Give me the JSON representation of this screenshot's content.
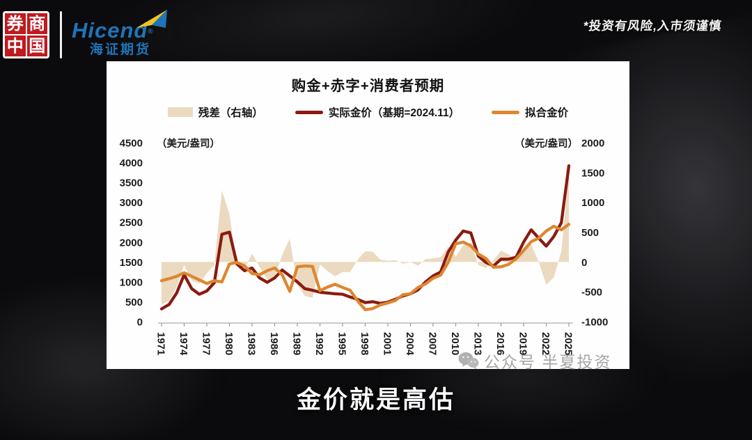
{
  "header": {
    "seal": {
      "chars": [
        "券",
        "商",
        "中",
        "国"
      ],
      "bg_color": "#bf1a1f"
    },
    "hicend": {
      "name": "Hicend",
      "reg": "®",
      "subtitle": "海证期货",
      "brand_color": "#1f74b8",
      "arrow_yellow": "#f2c41d",
      "arrow_blue": "#1f74b8"
    },
    "disclaimer": "*投资有风险,入市须谨慎"
  },
  "chart": {
    "title": "购金+赤字+消费者预期",
    "legend": [
      {
        "label": "残差（右轴）",
        "swatch": "area",
        "color": "#EBDAC0"
      },
      {
        "label": "实际金价（基期=2024.11）",
        "swatch": "line",
        "color": "#8B1A10"
      },
      {
        "label": "拟合金价",
        "swatch": "line",
        "color": "#DD8630"
      }
    ],
    "left_axis": {
      "unit": "（美元/盎司）",
      "ticks": [
        4500,
        4000,
        3500,
        3000,
        2500,
        2000,
        1500,
        1000,
        500,
        0
      ]
    },
    "right_axis": {
      "unit": "（美元/盎司）",
      "ticks": [
        2000,
        1500,
        1000,
        500,
        0,
        -500,
        -1000
      ]
    },
    "x_axis": {
      "ticks": [
        1971,
        1974,
        1977,
        1980,
        1983,
        1986,
        1989,
        1992,
        1995,
        1998,
        2001,
        2004,
        2007,
        2010,
        2013,
        2016,
        2019,
        2022,
        2025
      ]
    }
  },
  "chart_data": {
    "type": "line",
    "title": "购金+赤字+消费者预期",
    "x": [
      1971,
      1972,
      1973,
      1974,
      1975,
      1976,
      1977,
      1978,
      1979,
      1980,
      1981,
      1982,
      1983,
      1984,
      1985,
      1986,
      1987,
      1988,
      1989,
      1990,
      1991,
      1992,
      1993,
      1994,
      1995,
      1996,
      1997,
      1998,
      1999,
      2000,
      2001,
      2002,
      2003,
      2004,
      2005,
      2006,
      2007,
      2008,
      2009,
      2010,
      2011,
      2012,
      2013,
      2014,
      2015,
      2016,
      2017,
      2018,
      2019,
      2020,
      2021,
      2022,
      2023,
      2024,
      2025
    ],
    "left_ylim": [
      0,
      4500
    ],
    "right_ylim": [
      -1000,
      2000
    ],
    "grid": false,
    "legend_position": "top",
    "series": [
      {
        "name": "残差（右轴）",
        "type": "area",
        "axis": "right",
        "color": "#EBDAC0",
        "values": [
          -710,
          -650,
          -420,
          -50,
          -310,
          -360,
          -190,
          -50,
          1200,
          800,
          -40,
          -120,
          140,
          -80,
          -290,
          -250,
          120,
          390,
          -380,
          -570,
          -600,
          -40,
          -150,
          -240,
          -170,
          -170,
          40,
          180,
          170,
          40,
          20,
          30,
          -30,
          0,
          -60,
          50,
          60,
          80,
          260,
          90,
          280,
          320,
          -50,
          -100,
          30,
          190,
          130,
          40,
          210,
          300,
          0,
          -380,
          -260,
          180,
          1470
        ]
      },
      {
        "name": "实际金价（基期=2024.11）",
        "type": "line",
        "axis": "left",
        "color": "#8B1A10",
        "values": [
          320,
          430,
          720,
          1180,
          830,
          690,
          770,
          980,
          2200,
          2250,
          1450,
          1280,
          1350,
          1100,
          990,
          1100,
          1300,
          1150,
          1000,
          830,
          790,
          740,
          720,
          700,
          690,
          620,
          560,
          480,
          500,
          460,
          490,
          560,
          650,
          700,
          800,
          1000,
          1150,
          1250,
          1750,
          2050,
          2280,
          2230,
          1650,
          1490,
          1400,
          1570,
          1570,
          1620,
          2000,
          2310,
          2100,
          1900,
          2140,
          2490,
          3920
        ]
      },
      {
        "name": "拟合金价",
        "type": "line",
        "axis": "left",
        "color": "#DD8630",
        "values": [
          1030,
          1080,
          1140,
          1230,
          1140,
          1050,
          960,
          1030,
          1000,
          1450,
          1490,
          1400,
          1210,
          1180,
          1280,
          1350,
          1180,
          760,
          1380,
          1400,
          1390,
          780,
          870,
          940,
          860,
          790,
          520,
          300,
          330,
          420,
          470,
          530,
          680,
          700,
          860,
          950,
          1090,
          1170,
          1490,
          1960,
          2000,
          1910,
          1700,
          1590,
          1370,
          1380,
          1440,
          1580,
          1790,
          2010,
          2100,
          2280,
          2400,
          2310,
          2450
        ]
      }
    ]
  },
  "watermark": {
    "text": "公众号  半夏投资"
  },
  "caption": {
    "text": "金价就是高估"
  }
}
